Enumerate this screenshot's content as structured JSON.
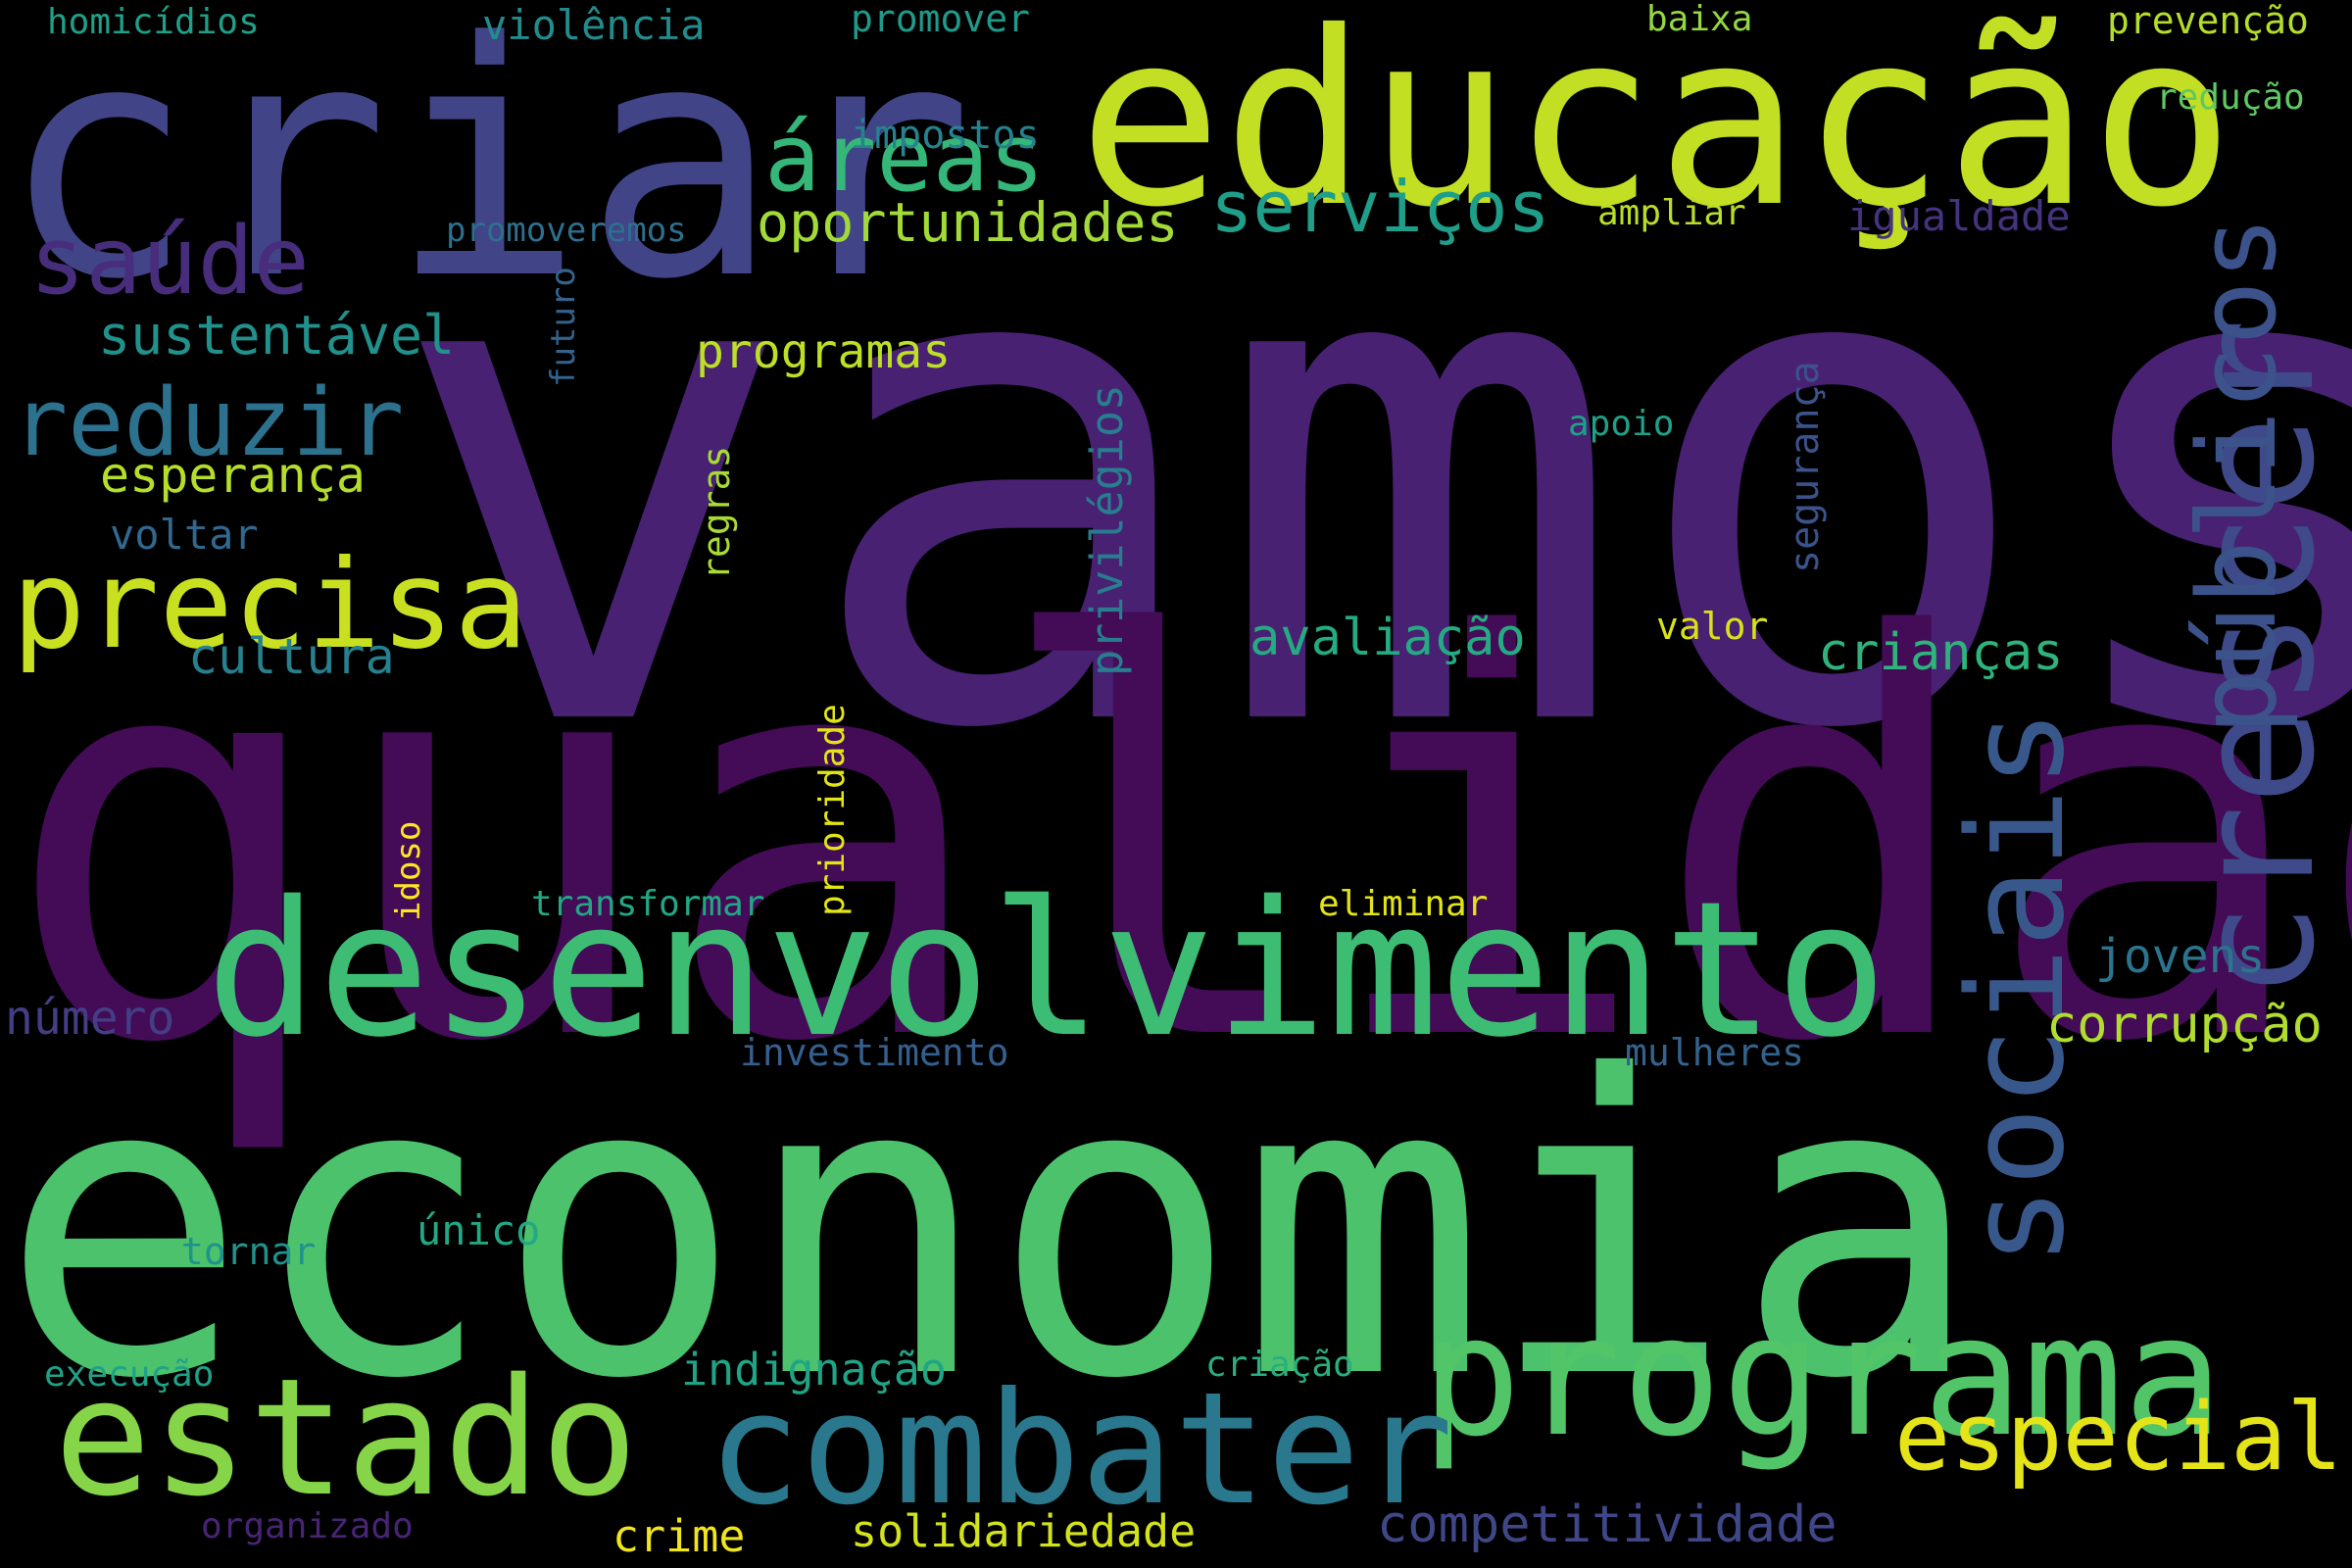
{
  "words": [
    {
      "text": "vamos",
      "color": "#482173"
    },
    {
      "text": "qualidade",
      "color": "#440b57"
    },
    {
      "text": "economia",
      "color": "#4cc26c"
    },
    {
      "text": "criar",
      "color": "#414487"
    },
    {
      "text": "educação",
      "color": "#c2df23"
    },
    {
      "text": "desenvolvimento",
      "color": "#3dbc74"
    },
    {
      "text": "programa",
      "color": "#52c569"
    },
    {
      "text": "estado",
      "color": "#86d549"
    },
    {
      "text": "combater",
      "color": "#2a788e"
    },
    {
      "text": "crescer",
      "color": "#3e4a89"
    },
    {
      "text": "sociais",
      "color": "#38588c"
    },
    {
      "text": "precisa",
      "color": "#c8e020"
    },
    {
      "text": "públicos",
      "color": "#3b528b"
    },
    {
      "text": "especial",
      "color": "#e5e419"
    },
    {
      "text": "reduzir",
      "color": "#2c728e"
    },
    {
      "text": "áreas",
      "color": "#35b779"
    },
    {
      "text": "saúde",
      "color": "#472d7b"
    },
    {
      "text": "serviços",
      "color": "#1f9e89"
    },
    {
      "text": "oportunidades",
      "color": "#a2da37"
    },
    {
      "text": "sustentável",
      "color": "#21918c"
    },
    {
      "text": "programas",
      "color": "#bddf26"
    },
    {
      "text": "esperança",
      "color": "#b5de2b"
    },
    {
      "text": "cultura",
      "color": "#27808e"
    },
    {
      "text": "avaliação",
      "color": "#25ab82"
    },
    {
      "text": "crianças",
      "color": "#2eb37c"
    },
    {
      "text": "jovens",
      "color": "#2c738e"
    },
    {
      "text": "corrupção",
      "color": "#b0dd2f"
    },
    {
      "text": "competitividade",
      "color": "#3f4788"
    },
    {
      "text": "número",
      "color": "#433e85"
    },
    {
      "text": "indignação",
      "color": "#20a486"
    },
    {
      "text": "solidariedade",
      "color": "#d2e21b"
    },
    {
      "text": "crime",
      "color": "#f1e51d"
    },
    {
      "text": "transformar",
      "color": "#22a785"
    },
    {
      "text": "voltar",
      "color": "#31688e"
    },
    {
      "text": "segurança",
      "color": "#3b528b"
    },
    {
      "text": "privilégios",
      "color": "#287d8e"
    },
    {
      "text": "igualdade",
      "color": "#46337f"
    },
    {
      "text": "regras",
      "color": "#a8db34"
    },
    {
      "text": "impostos",
      "color": "#26828e"
    },
    {
      "text": "prevenção",
      "color": "#b5de2b"
    },
    {
      "text": "violência",
      "color": "#228c8d"
    },
    {
      "text": "homicídios",
      "color": "#1fa088"
    },
    {
      "text": "promover",
      "color": "#1f9a8a"
    },
    {
      "text": "baixa",
      "color": "#93d741"
    },
    {
      "text": "redução",
      "color": "#5ec962"
    },
    {
      "text": "ampliar",
      "color": "#b8de29"
    },
    {
      "text": "promoveremos",
      "color": "#2d708e"
    },
    {
      "text": "futuro",
      "color": "#33638d"
    },
    {
      "text": "apoio",
      "color": "#1fa187"
    },
    {
      "text": "valor",
      "color": "#d8e219"
    },
    {
      "text": "prioridade",
      "color": "#e2e418"
    },
    {
      "text": "idoso",
      "color": "#fde725"
    },
    {
      "text": "único",
      "color": "#22a884"
    },
    {
      "text": "eliminar",
      "color": "#e2e418"
    },
    {
      "text": "investimento",
      "color": "#355f8d"
    },
    {
      "text": "mulheres",
      "color": "#33638d"
    },
    {
      "text": "tornar",
      "color": "#20928c"
    },
    {
      "text": "execução",
      "color": "#1fa287"
    },
    {
      "text": "criação",
      "color": "#29af7f"
    },
    {
      "text": "organizado",
      "color": "#482475"
    }
  ]
}
